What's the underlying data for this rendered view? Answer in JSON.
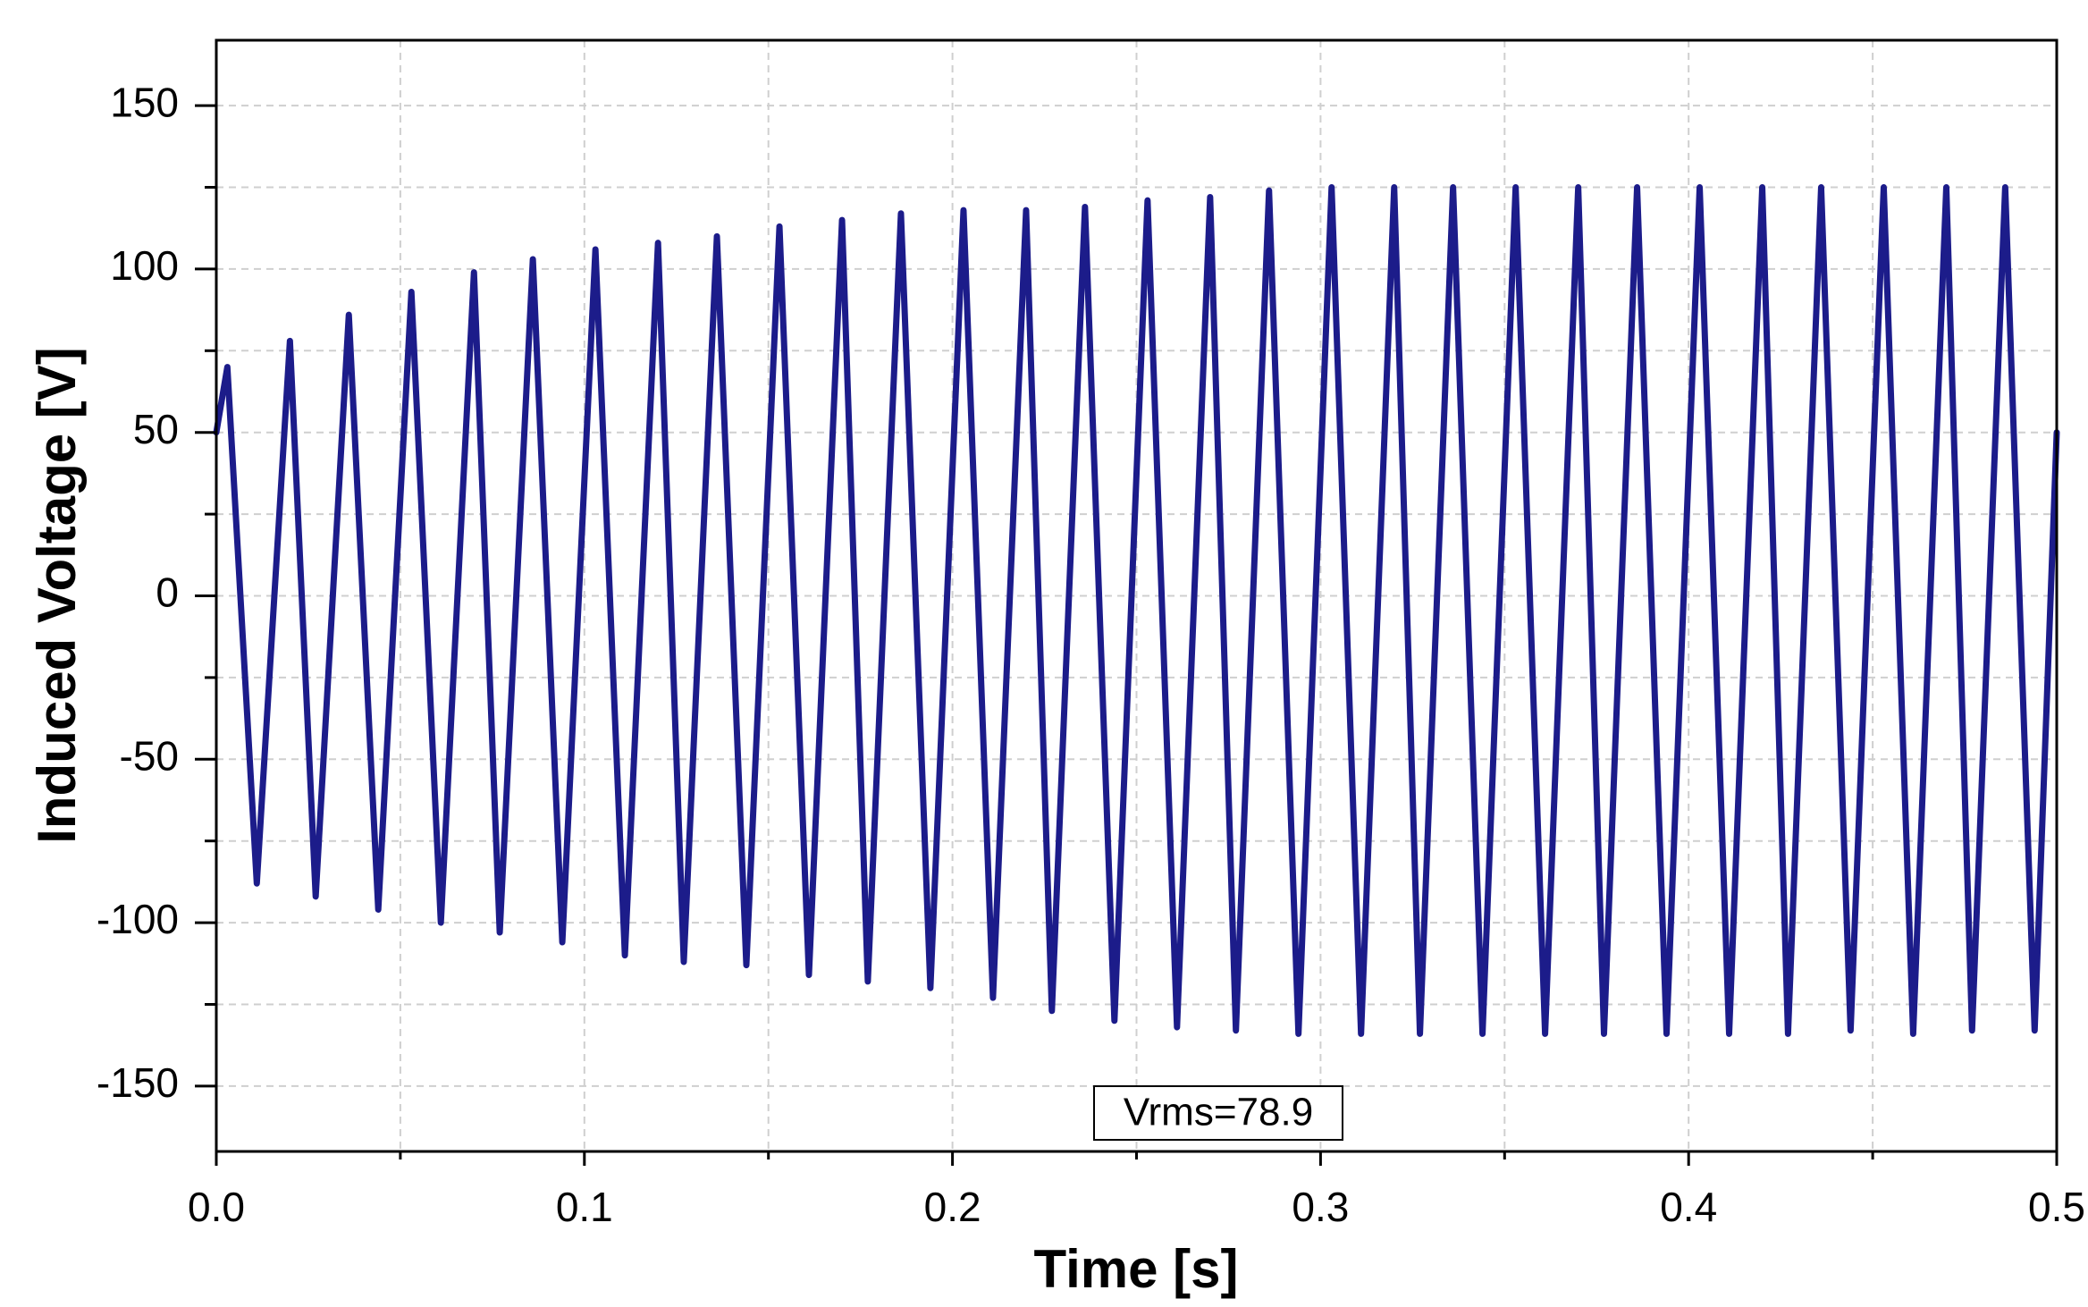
{
  "chart_data": {
    "type": "line",
    "x_label": "Time [s]",
    "y_label": "Induced Voltage [V]",
    "annotation": "Vrms=78.9",
    "color": "#1c1c8a",
    "grid": true,
    "xlim": [
      0,
      0.5
    ],
    "ylim": [
      -170,
      170
    ],
    "xticks": [
      {
        "value": 0,
        "label": "0.0"
      },
      0.1,
      0.2,
      0.3,
      0.4,
      0.5
    ],
    "yticks": [
      -150,
      -100,
      -50,
      0,
      50,
      100,
      150
    ],
    "xminorticks": [
      0.05,
      0.15,
      0.25,
      0.35,
      0.45
    ],
    "yminorticks": [
      -125,
      -75,
      -25,
      25,
      75,
      125
    ],
    "x": [
      0,
      0.003,
      0.011,
      0.02,
      0.027,
      0.036,
      0.044,
      0.053,
      0.061,
      0.07,
      0.077,
      0.086,
      0.094,
      0.103,
      0.111,
      0.12,
      0.127,
      0.136,
      0.144,
      0.153,
      0.161,
      0.17,
      0.177,
      0.186,
      0.194,
      0.203,
      0.211,
      0.22,
      0.227,
      0.236,
      0.244,
      0.253,
      0.261,
      0.27,
      0.277,
      0.286,
      0.294,
      0.303,
      0.311,
      0.32,
      0.327,
      0.336,
      0.344,
      0.353,
      0.361,
      0.37,
      0.377,
      0.386,
      0.394,
      0.403,
      0.411,
      0.42,
      0.427,
      0.436,
      0.444,
      0.453,
      0.461,
      0.47,
      0.477,
      0.486,
      0.494,
      0.5
    ],
    "values": [
      50,
      70,
      -88,
      78,
      -92,
      86,
      -96,
      93,
      -100,
      99,
      -103,
      103,
      -106,
      106,
      -110,
      108,
      -112,
      110,
      -113,
      113,
      -116,
      115,
      -118,
      117,
      -120,
      118,
      -123,
      118,
      -127,
      119,
      -130,
      121,
      -132,
      122,
      -133,
      124,
      -134,
      125,
      -134,
      125,
      -134,
      125,
      -134,
      125,
      -134,
      125,
      -134,
      125,
      -134,
      125,
      -134,
      125,
      -134,
      125,
      -133,
      125,
      -134,
      125,
      -133,
      125,
      -133,
      50
    ]
  }
}
